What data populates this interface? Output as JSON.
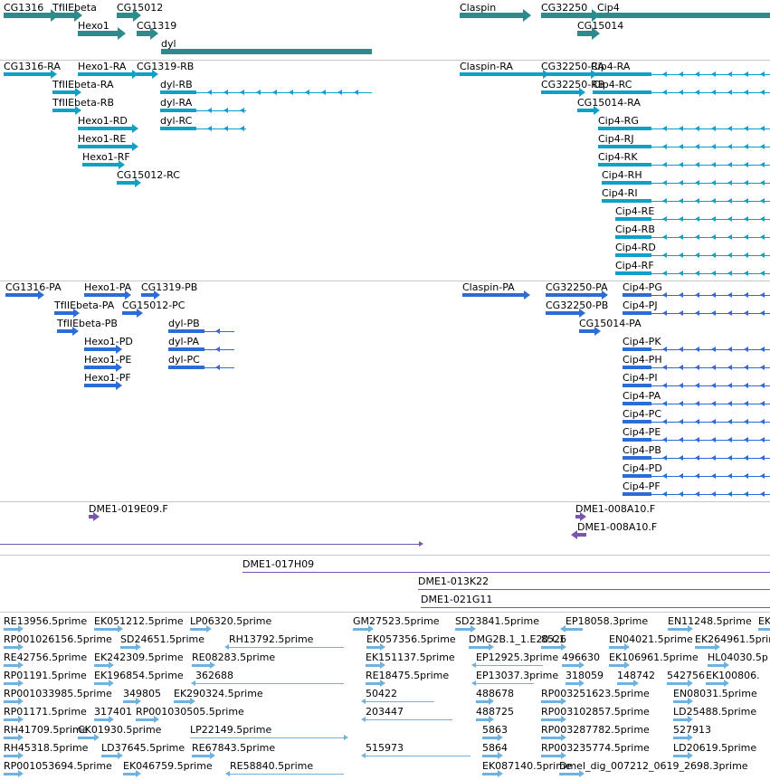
{
  "colors": {
    "gene": "#2e8b8b",
    "transcript": "#0fa0c8",
    "protein": "#2d6cd6",
    "bac": "#7a55b0",
    "est": "#6fb2e0",
    "separator": "#c8c8c8",
    "text": "#000000"
  },
  "tracks": [
    {
      "name": "gene-track",
      "color": "#2e8b8b",
      "features": [
        {
          "label": "CG1316",
          "dir": "+"
        },
        {
          "label": "TfIIEbeta",
          "dir": "+"
        },
        {
          "label": "CG15012",
          "dir": "+"
        },
        {
          "label": "Hexo1",
          "dir": "+"
        },
        {
          "label": "CG1319",
          "dir": "+"
        },
        {
          "label": "dyl",
          "dir": "-"
        },
        {
          "label": "Claspin",
          "dir": "+"
        },
        {
          "label": "CG32250",
          "dir": "+"
        },
        {
          "label": "Cip4",
          "dir": "-"
        },
        {
          "label": "CG15014",
          "dir": "+"
        }
      ]
    },
    {
      "name": "transcript-track",
      "color": "#0fa0c8",
      "features": [
        {
          "label": "CG1316-RA",
          "dir": "+"
        },
        {
          "label": "Hexo1-RA",
          "dir": "+"
        },
        {
          "label": "CG1319-RB",
          "dir": "+"
        },
        {
          "label": "TfIIEbeta-RA",
          "dir": "+"
        },
        {
          "label": "dyl-RB",
          "dir": "-"
        },
        {
          "label": "TfIIEbeta-RB",
          "dir": "+"
        },
        {
          "label": "dyl-RA",
          "dir": "-"
        },
        {
          "label": "Hexo1-RD",
          "dir": "+"
        },
        {
          "label": "dyl-RC",
          "dir": "-"
        },
        {
          "label": "Hexo1-RE",
          "dir": "+"
        },
        {
          "label": "Hexo1-RF",
          "dir": "+"
        },
        {
          "label": "CG15012-RC",
          "dir": "+"
        },
        {
          "label": "Claspin-RA",
          "dir": "+"
        },
        {
          "label": "CG32250-RA",
          "dir": "+"
        },
        {
          "label": "Cip4-RA",
          "dir": "-"
        },
        {
          "label": "CG32250-RB",
          "dir": "+"
        },
        {
          "label": "Cip4-RC",
          "dir": "-"
        },
        {
          "label": "CG15014-RA",
          "dir": "+"
        },
        {
          "label": "Cip4-RG",
          "dir": "-"
        },
        {
          "label": "Cip4-RJ",
          "dir": "-"
        },
        {
          "label": "Cip4-RK",
          "dir": "-"
        },
        {
          "label": "Cip4-RH",
          "dir": "-"
        },
        {
          "label": "Cip4-RI",
          "dir": "-"
        },
        {
          "label": "Cip4-RE",
          "dir": "-"
        },
        {
          "label": "Cip4-RB",
          "dir": "-"
        },
        {
          "label": "Cip4-RD",
          "dir": "-"
        },
        {
          "label": "Cip4-RF",
          "dir": "-"
        }
      ]
    },
    {
      "name": "protein-track",
      "color": "#2d6cd6",
      "features": [
        {
          "label": "CG1316-PA",
          "dir": "+"
        },
        {
          "label": "Hexo1-PA",
          "dir": "+"
        },
        {
          "label": "CG1319-PB",
          "dir": "+"
        },
        {
          "label": "TfIIEbeta-PA",
          "dir": "+"
        },
        {
          "label": "CG15012-PC",
          "dir": "+"
        },
        {
          "label": "TfIIEbeta-PB",
          "dir": "+"
        },
        {
          "label": "dyl-PB",
          "dir": "-"
        },
        {
          "label": "Hexo1-PD",
          "dir": "+"
        },
        {
          "label": "dyl-PA",
          "dir": "-"
        },
        {
          "label": "Hexo1-PE",
          "dir": "+"
        },
        {
          "label": "dyl-PC",
          "dir": "-"
        },
        {
          "label": "Hexo1-PF",
          "dir": "+"
        },
        {
          "label": "Claspin-PA",
          "dir": "+"
        },
        {
          "label": "CG32250-PA",
          "dir": "+"
        },
        {
          "label": "Cip4-PG",
          "dir": "-"
        },
        {
          "label": "CG32250-PB",
          "dir": "+"
        },
        {
          "label": "Cip4-PJ",
          "dir": "-"
        },
        {
          "label": "CG15014-PA",
          "dir": "+"
        },
        {
          "label": "Cip4-PK",
          "dir": "-"
        },
        {
          "label": "Cip4-PH",
          "dir": "-"
        },
        {
          "label": "Cip4-PI",
          "dir": "-"
        },
        {
          "label": "Cip4-PA",
          "dir": "-"
        },
        {
          "label": "Cip4-PC",
          "dir": "-"
        },
        {
          "label": "Cip4-PE",
          "dir": "-"
        },
        {
          "label": "Cip4-PB",
          "dir": "-"
        },
        {
          "label": "Cip4-PD",
          "dir": "-"
        },
        {
          "label": "Cip4-PF",
          "dir": "-"
        }
      ]
    },
    {
      "name": "bac-track-1",
      "color": "#7a55b0",
      "features": [
        {
          "label": "DME1-019E09.F",
          "dir": "+"
        },
        {
          "label": "",
          "dir": "+"
        },
        {
          "label": "DME1-008A10.F",
          "dir": "+"
        },
        {
          "label": "DME1-008A10.F",
          "dir": "-"
        },
        {
          "label": "",
          "dir": "+"
        }
      ]
    },
    {
      "name": "bac-track-2",
      "color": "#7a55b0",
      "features": [
        {
          "label": "DME1-017H09",
          "dir": "+"
        },
        {
          "label": "DME1-013K22",
          "dir": "+"
        },
        {
          "label": "DME1-021G11",
          "dir": "-"
        }
      ]
    },
    {
      "name": "est-track",
      "color": "#6fb2e0",
      "features": [
        {
          "label": "RE13956.5prime",
          "dir": "+"
        },
        {
          "label": "EK051212.5prime",
          "dir": "+"
        },
        {
          "label": "LP06320.5prime",
          "dir": "+"
        },
        {
          "label": "GM27523.5prime",
          "dir": "+"
        },
        {
          "label": "SD23841.5prime",
          "dir": "+"
        },
        {
          "label": "EP18058.3prime",
          "dir": "-"
        },
        {
          "label": "EN11248.5prime",
          "dir": "+"
        },
        {
          "label": "EK",
          "dir": "+"
        },
        {
          "label": "RP001026156.5prime",
          "dir": "+"
        },
        {
          "label": "SD24651.5prime",
          "dir": "+"
        },
        {
          "label": "RH13792.5prime",
          "dir": "-"
        },
        {
          "label": "EK057356.5prime",
          "dir": "+"
        },
        {
          "label": "DMG2B.1_1.E20.C1",
          "dir": "+"
        },
        {
          "label": "8526",
          "dir": "+"
        },
        {
          "label": "EN04021.5prime",
          "dir": "+"
        },
        {
          "label": "EK264961.5prime",
          "dir": "+"
        },
        {
          "label": "RE42756.5prime",
          "dir": "+"
        },
        {
          "label": "EK242309.5prime",
          "dir": "+"
        },
        {
          "label": "RE08283.5prime",
          "dir": "+"
        },
        {
          "label": "EK151137.5prime",
          "dir": "+"
        },
        {
          "label": "EP12925.3prime",
          "dir": "-"
        },
        {
          "label": "496630",
          "dir": "+"
        },
        {
          "label": "EK106961.5prime",
          "dir": "+"
        },
        {
          "label": "HL04030.5p",
          "dir": "+"
        },
        {
          "label": "RP01191.5prime",
          "dir": "+"
        },
        {
          "label": "EK196854.5prime",
          "dir": "+"
        },
        {
          "label": "362688",
          "dir": "-"
        },
        {
          "label": "RE18475.5prime",
          "dir": "+"
        },
        {
          "label": "EP13037.3prime",
          "dir": "-"
        },
        {
          "label": "318059",
          "dir": "+"
        },
        {
          "label": "148742",
          "dir": "+"
        },
        {
          "label": "542756",
          "dir": "+"
        },
        {
          "label": "EK100806.",
          "dir": "+"
        },
        {
          "label": "RP001033985.5prime",
          "dir": "+"
        },
        {
          "label": "349805",
          "dir": "+"
        },
        {
          "label": "EK290324.5prime",
          "dir": "+"
        },
        {
          "label": "50422",
          "dir": "-"
        },
        {
          "label": "488678",
          "dir": "+"
        },
        {
          "label": "RP003251623.5prime",
          "dir": "+"
        },
        {
          "label": "EN08031.5prime",
          "dir": "+"
        },
        {
          "label": "RP01171.5prime",
          "dir": "+"
        },
        {
          "label": "317401",
          "dir": "+"
        },
        {
          "label": "RP001030505.5prime",
          "dir": "+"
        },
        {
          "label": "203447",
          "dir": "-"
        },
        {
          "label": "488725",
          "dir": "+"
        },
        {
          "label": "RP003102857.5prime",
          "dir": "+"
        },
        {
          "label": "LD25488.5prime",
          "dir": "+"
        },
        {
          "label": "RH41709.5prime",
          "dir": "+"
        },
        {
          "label": "CK01930.5prime",
          "dir": "+"
        },
        {
          "label": "LP22149.5prime",
          "dir": "+"
        },
        {
          "label": "5863",
          "dir": "+"
        },
        {
          "label": "RP003287782.5prime",
          "dir": "+"
        },
        {
          "label": "527913",
          "dir": "+"
        },
        {
          "label": "RH45318.5prime",
          "dir": "+"
        },
        {
          "label": "LD37645.5prime",
          "dir": "+"
        },
        {
          "label": "RE67843.5prime",
          "dir": "+"
        },
        {
          "label": "515973",
          "dir": "-"
        },
        {
          "label": "5864",
          "dir": "+"
        },
        {
          "label": "RP003235774.5prime",
          "dir": "+"
        },
        {
          "label": "LD20619.5prime",
          "dir": "+"
        },
        {
          "label": "RP001053694.5prime",
          "dir": "+"
        },
        {
          "label": "EK046759.5prime",
          "dir": "+"
        },
        {
          "label": "RE58840.5prime",
          "dir": "-"
        },
        {
          "label": "EK087140.5prime",
          "dir": "+"
        },
        {
          "label": "Dmel_dig_007212_0619_2698.3prime",
          "dir": "+"
        }
      ]
    }
  ]
}
